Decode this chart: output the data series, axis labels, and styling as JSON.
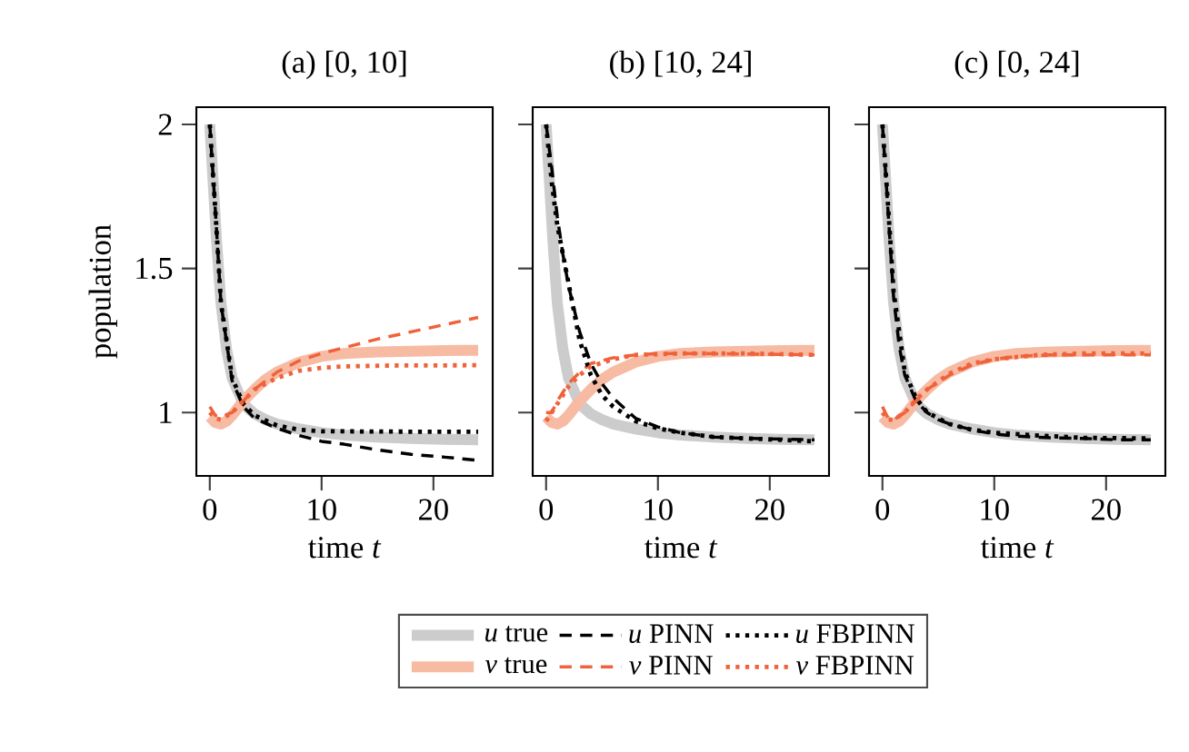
{
  "chart_data": [
    {
      "type": "line",
      "title": "(a) [0, 10]",
      "xlabel": "time *t*",
      "ylabel": "population",
      "xlim": [
        -1.2,
        25.3
      ],
      "ylim": [
        0.78,
        2.06
      ],
      "xticks": [
        0,
        10,
        20
      ],
      "yticks": [
        1,
        1.5,
        2
      ],
      "series": [
        {
          "color": "#cccccc",
          "line_style": "solid",
          "x": [
            0,
            0.3,
            0.6,
            1,
            1.5,
            2,
            3,
            4,
            5,
            6,
            8,
            10,
            12,
            15,
            18,
            21,
            24
          ],
          "values": [
            2.0,
            1.8,
            1.6,
            1.38,
            1.22,
            1.12,
            1.03,
            0.995,
            0.975,
            0.96,
            0.943,
            0.93,
            0.922,
            0.915,
            0.91,
            0.907,
            0.905
          ]
        },
        {
          "color": "#f7bba4",
          "line_style": "solid",
          "x": [
            0,
            0.5,
            1,
            1.5,
            2,
            3,
            4,
            5,
            6,
            8,
            10,
            12,
            15,
            18,
            21,
            24
          ],
          "values": [
            0.985,
            0.965,
            0.96,
            0.97,
            0.99,
            1.04,
            1.08,
            1.115,
            1.14,
            1.175,
            1.195,
            1.205,
            1.21,
            1.213,
            1.215,
            1.216
          ]
        },
        {
          "color": "#000000",
          "line_style": "dashed",
          "x": [
            0,
            0.5,
            1,
            2,
            3,
            4,
            6,
            8,
            10,
            12,
            15,
            18,
            21,
            24
          ],
          "values": [
            2.0,
            1.7,
            1.38,
            1.11,
            1.02,
            0.98,
            0.945,
            0.92,
            0.9,
            0.89,
            0.87,
            0.855,
            0.845,
            0.834
          ]
        },
        {
          "color": "#f0623a",
          "line_style": "dashed",
          "x": [
            0,
            0.5,
            1,
            2,
            3,
            4,
            6,
            8,
            10,
            12,
            15,
            18,
            21,
            24
          ],
          "values": [
            1.02,
            0.99,
            0.985,
            1.0,
            1.04,
            1.08,
            1.14,
            1.18,
            1.205,
            1.225,
            1.255,
            1.28,
            1.305,
            1.33
          ]
        },
        {
          "color": "#000000",
          "line_style": "dotted",
          "x": [
            0,
            0.5,
            1,
            2,
            3,
            4,
            6,
            8,
            10,
            15,
            20,
            24
          ],
          "values": [
            2.0,
            1.7,
            1.38,
            1.12,
            1.03,
            0.99,
            0.955,
            0.94,
            0.935,
            0.934,
            0.933,
            0.933
          ]
        },
        {
          "color": "#f0623a",
          "line_style": "dotted",
          "x": [
            0,
            0.5,
            1,
            2,
            3,
            4,
            6,
            8,
            10,
            12,
            16,
            24
          ],
          "values": [
            1.0,
            0.98,
            0.975,
            1.0,
            1.04,
            1.08,
            1.12,
            1.145,
            1.155,
            1.16,
            1.163,
            1.164
          ]
        }
      ]
    },
    {
      "type": "line",
      "title": "(b) [10, 24]",
      "xlabel": "time *t*",
      "xlim": [
        -1.2,
        25.3
      ],
      "ylim": [
        0.78,
        2.06
      ],
      "xticks": [
        0,
        10,
        20
      ],
      "yticks": [
        1,
        1.5,
        2
      ],
      "tick_labels": "x",
      "legend": "bottom",
      "series": [
        {
          "name": "*u* true",
          "color": "#cccccc",
          "line_style": "solid",
          "x": [
            0,
            0.3,
            0.6,
            1,
            1.5,
            2,
            3,
            4,
            5,
            6,
            8,
            10,
            12,
            15,
            18,
            21,
            24
          ],
          "values": [
            2.0,
            1.8,
            1.6,
            1.38,
            1.22,
            1.12,
            1.03,
            0.995,
            0.975,
            0.96,
            0.943,
            0.93,
            0.922,
            0.915,
            0.91,
            0.907,
            0.905
          ]
        },
        {
          "name": "*v* true",
          "color": "#f7bba4",
          "line_style": "solid",
          "x": [
            0,
            0.5,
            1,
            1.5,
            2,
            3,
            4,
            5,
            6,
            8,
            10,
            12,
            15,
            18,
            21,
            24
          ],
          "values": [
            0.985,
            0.965,
            0.96,
            0.97,
            0.99,
            1.04,
            1.08,
            1.115,
            1.14,
            1.175,
            1.195,
            1.205,
            1.21,
            1.213,
            1.215,
            1.216
          ]
        },
        {
          "name": "*u* PINN",
          "color": "#000000",
          "line_style": "dashed",
          "x": [
            0,
            0.5,
            1,
            1.5,
            2,
            3,
            4,
            5,
            6,
            8,
            10,
            12,
            15,
            18,
            21,
            24
          ],
          "values": [
            2.0,
            1.85,
            1.68,
            1.55,
            1.44,
            1.28,
            1.17,
            1.1,
            1.05,
            0.98,
            0.95,
            0.93,
            0.915,
            0.91,
            0.908,
            0.905
          ]
        },
        {
          "name": "*v* PINN",
          "color": "#f0623a",
          "line_style": "dashed",
          "x": [
            0,
            0.5,
            1,
            2,
            3,
            4,
            6,
            8,
            10,
            14,
            18,
            24
          ],
          "values": [
            1.0,
            1.0,
            1.04,
            1.1,
            1.14,
            1.17,
            1.19,
            1.2,
            1.205,
            1.205,
            1.203,
            1.2
          ]
        },
        {
          "name": "*u* FBPINN",
          "color": "#000000",
          "line_style": "dotted",
          "x": [
            0,
            0.5,
            1,
            2,
            3,
            4,
            5,
            6,
            8,
            10,
            12,
            15,
            18,
            21,
            24
          ],
          "values": [
            2.0,
            1.8,
            1.65,
            1.45,
            1.25,
            1.13,
            1.06,
            1.02,
            0.97,
            0.945,
            0.93,
            0.915,
            0.91,
            0.905,
            0.9
          ]
        },
        {
          "name": "*v* FBPINN",
          "color": "#f0623a",
          "line_style": "dotted",
          "x": [
            0,
            1,
            2,
            3,
            4,
            6,
            8,
            12,
            18,
            24
          ],
          "values": [
            0.97,
            1.03,
            1.09,
            1.13,
            1.16,
            1.185,
            1.2,
            1.205,
            1.205,
            1.2
          ]
        }
      ]
    },
    {
      "type": "line",
      "title": "(c) [0, 24]",
      "xlabel": "time *t*",
      "xlim": [
        -1.2,
        25.3
      ],
      "ylim": [
        0.78,
        2.06
      ],
      "xticks": [
        0,
        10,
        20
      ],
      "yticks": [
        1,
        1.5,
        2
      ],
      "tick_labels": "x",
      "series": [
        {
          "color": "#cccccc",
          "line_style": "solid",
          "x": [
            0,
            0.3,
            0.6,
            1,
            1.5,
            2,
            3,
            4,
            5,
            6,
            8,
            10,
            12,
            15,
            18,
            21,
            24
          ],
          "values": [
            2.0,
            1.8,
            1.6,
            1.38,
            1.22,
            1.12,
            1.03,
            0.995,
            0.975,
            0.96,
            0.943,
            0.93,
            0.922,
            0.915,
            0.91,
            0.907,
            0.905
          ]
        },
        {
          "color": "#f7bba4",
          "line_style": "solid",
          "x": [
            0,
            0.5,
            1,
            1.5,
            2,
            3,
            4,
            5,
            6,
            8,
            10,
            12,
            15,
            18,
            21,
            24
          ],
          "values": [
            0.985,
            0.965,
            0.96,
            0.97,
            0.99,
            1.04,
            1.08,
            1.115,
            1.14,
            1.175,
            1.195,
            1.205,
            1.21,
            1.213,
            1.215,
            1.216
          ]
        },
        {
          "color": "#000000",
          "line_style": "dashed",
          "x": [
            0,
            0.5,
            1,
            1.5,
            2,
            3,
            4,
            5,
            6,
            8,
            10,
            12,
            15,
            18,
            21,
            24
          ],
          "values": [
            2.0,
            1.7,
            1.4,
            1.23,
            1.13,
            1.04,
            1.0,
            0.975,
            0.96,
            0.94,
            0.925,
            0.918,
            0.912,
            0.91,
            0.905,
            0.905
          ]
        },
        {
          "color": "#f0623a",
          "line_style": "dashed",
          "x": [
            0,
            0.5,
            1,
            2,
            3,
            4,
            6,
            8,
            10,
            12,
            15,
            18,
            21,
            24
          ],
          "values": [
            1.02,
            0.98,
            0.975,
            1.0,
            1.04,
            1.08,
            1.13,
            1.165,
            1.185,
            1.195,
            1.2,
            1.2,
            1.2,
            1.2
          ]
        },
        {
          "color": "#000000",
          "line_style": "dotted",
          "x": [
            0,
            0.5,
            1,
            2,
            3,
            4,
            6,
            8,
            10,
            14,
            18,
            24
          ],
          "values": [
            2.0,
            1.72,
            1.42,
            1.14,
            1.05,
            1.0,
            0.96,
            0.94,
            0.93,
            0.92,
            0.912,
            0.91
          ]
        },
        {
          "color": "#f0623a",
          "line_style": "dotted",
          "x": [
            0,
            0.5,
            1,
            2,
            3,
            4,
            6,
            8,
            10,
            14,
            18,
            24
          ],
          "values": [
            1.0,
            0.975,
            0.975,
            1.0,
            1.045,
            1.08,
            1.135,
            1.17,
            1.185,
            1.2,
            1.205,
            1.205
          ]
        }
      ]
    }
  ]
}
